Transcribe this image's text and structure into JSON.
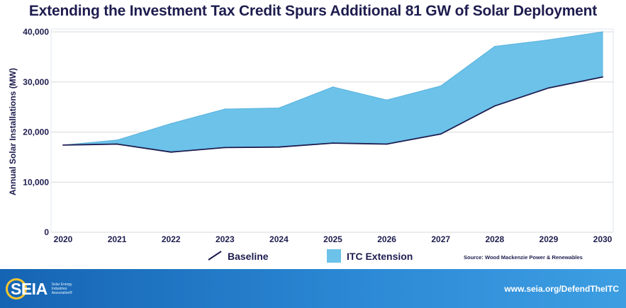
{
  "title": "Extending the Investment Tax Credit Spurs Additional 81 GW of Solar Deployment",
  "chart_data": {
    "type": "area",
    "x": [
      "2020",
      "2021",
      "2022",
      "2023",
      "2024",
      "2025",
      "2026",
      "2027",
      "2028",
      "2029",
      "2030"
    ],
    "ylabel": "Annual Solar Installations (MW)",
    "xlabel": "",
    "ylim": [
      0,
      40000
    ],
    "yticks": [
      0,
      10000,
      20000,
      30000,
      40000
    ],
    "ytick_labels": [
      "0",
      "10,000",
      "20,000",
      "30,000",
      "40,000"
    ],
    "grid": "horizontal",
    "legend_position": "bottom",
    "series": [
      {
        "name": "Baseline",
        "kind": "line",
        "color": "#1e1d4f",
        "values": [
          17400,
          17600,
          16000,
          16900,
          17000,
          17800,
          17600,
          19600,
          25200,
          28800,
          31000
        ]
      },
      {
        "name": "ITC Extension",
        "kind": "area",
        "color": "#6cc2e9",
        "values": [
          17400,
          18400,
          21700,
          24600,
          24800,
          29000,
          26400,
          29200,
          37100,
          38400,
          40000
        ]
      }
    ],
    "source": "Source: Wood Mackenzie Power & Renewables"
  },
  "footer": {
    "logo_text": "SEIA",
    "logo_sub": "Solar Energy Industries Association®",
    "url": "www.seia.org/DefendTheITC"
  },
  "colors": {
    "title": "#1e1d4f",
    "area": "#6cc2e9",
    "line": "#1e1d4f",
    "grid": "#d9d9d9",
    "footer": "#1f77c4"
  }
}
